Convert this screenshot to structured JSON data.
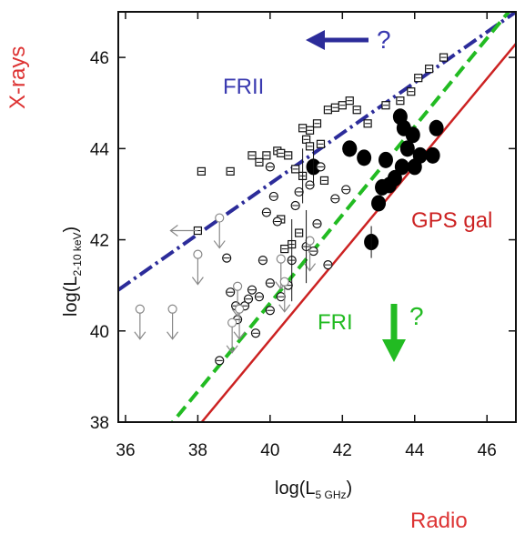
{
  "chart_data": {
    "type": "scatter",
    "xlabel": "log(L",
    "xlabel_sub": "5 GHz",
    "xlabel_tail": ")",
    "ylabel": "log(L",
    "ylabel_sub": "2-10 keV",
    "ylabel_tail": ")",
    "xlim": [
      35.8,
      46.8
    ],
    "ylim": [
      38,
      47
    ],
    "x_ticks": [
      36,
      38,
      40,
      42,
      44,
      46
    ],
    "y_ticks": [
      38,
      40,
      42,
      44,
      46
    ],
    "x_tick_labels": [
      "36",
      "38",
      "40",
      "42",
      "44",
      "46"
    ],
    "y_tick_labels": [
      "38",
      "40",
      "42",
      "44",
      "46"
    ],
    "grid": false,
    "annotations": {
      "x_rays": "X-rays",
      "radio": "Radio",
      "frii": "FRII",
      "fri": "FRI",
      "gps": "GPS gal",
      "q_top": "?",
      "q_right": "?"
    },
    "colors": {
      "frii": "#2c2c9a",
      "fri": "#22bb22",
      "gps": "#cc2222",
      "x_rays": "#dd3333",
      "radio": "#dd3333"
    },
    "series": [
      {
        "name": "FRII",
        "type": "line",
        "style": "dash-dot",
        "points": [
          [
            35.8,
            40.9
          ],
          [
            46.8,
            47.0
          ]
        ]
      },
      {
        "name": "FRI",
        "type": "line",
        "style": "dashed",
        "points": [
          [
            37.1,
            37.8
          ],
          [
            46.6,
            47.0
          ]
        ]
      },
      {
        "name": "GPS gal",
        "type": "line",
        "style": "solid",
        "points": [
          [
            37.9,
            37.8
          ],
          [
            46.8,
            46.3
          ]
        ]
      },
      {
        "name": "GPS galaxies",
        "type": "scatter",
        "marker": "filled-circle",
        "points": [
          [
            42.2,
            44.0
          ],
          [
            42.6,
            43.8
          ],
          [
            42.8,
            41.95
          ],
          [
            43.0,
            42.8
          ],
          [
            43.1,
            43.15
          ],
          [
            43.3,
            43.2
          ],
          [
            43.45,
            43.35
          ],
          [
            43.6,
            44.7
          ],
          [
            43.65,
            43.6
          ],
          [
            43.7,
            44.45
          ],
          [
            43.8,
            44.0
          ],
          [
            43.95,
            44.3
          ],
          [
            44.0,
            43.6
          ],
          [
            44.15,
            43.85
          ],
          [
            44.5,
            43.85
          ],
          [
            44.6,
            44.45
          ],
          [
            43.2,
            43.75
          ],
          [
            42.2,
            44.0
          ],
          [
            41.2,
            43.6
          ]
        ]
      },
      {
        "name": "FRII sources",
        "type": "scatter",
        "marker": "open-square",
        "points": [
          [
            38.1,
            43.5
          ],
          [
            38.9,
            43.5
          ],
          [
            39.5,
            43.85
          ],
          [
            39.7,
            43.7
          ],
          [
            39.9,
            43.85
          ],
          [
            40.2,
            43.95
          ],
          [
            40.3,
            43.9
          ],
          [
            40.5,
            43.85
          ],
          [
            40.7,
            43.55
          ],
          [
            40.9,
            43.4
          ],
          [
            41.0,
            44.2
          ],
          [
            41.1,
            44.4
          ],
          [
            41.3,
            44.55
          ],
          [
            41.4,
            44.1
          ],
          [
            41.6,
            44.85
          ],
          [
            41.8,
            44.9
          ],
          [
            42.0,
            44.95
          ],
          [
            42.2,
            45.05
          ],
          [
            42.4,
            44.85
          ],
          [
            42.7,
            44.55
          ],
          [
            43.2,
            44.95
          ],
          [
            43.6,
            45.05
          ],
          [
            43.9,
            45.25
          ],
          [
            44.1,
            45.55
          ],
          [
            44.4,
            45.75
          ],
          [
            44.8,
            46.0
          ],
          [
            40.9,
            44.45
          ],
          [
            41.1,
            44.05
          ],
          [
            41.5,
            43.3
          ],
          [
            40.8,
            42.15
          ],
          [
            40.6,
            41.9
          ],
          [
            40.4,
            41.8
          ],
          [
            40.3,
            42.45
          ],
          [
            38.0,
            42.2
          ]
        ]
      },
      {
        "name": "FRI sources",
        "type": "scatter",
        "marker": "open-circle-bar",
        "points": [
          [
            38.6,
            39.35
          ],
          [
            38.8,
            41.6
          ],
          [
            38.9,
            40.85
          ],
          [
            39.1,
            40.25
          ],
          [
            39.3,
            40.55
          ],
          [
            39.4,
            40.7
          ],
          [
            39.5,
            40.9
          ],
          [
            39.6,
            39.95
          ],
          [
            39.7,
            40.75
          ],
          [
            39.8,
            41.55
          ],
          [
            39.9,
            42.6
          ],
          [
            40.0,
            41.05
          ],
          [
            40.0,
            43.6
          ],
          [
            40.1,
            42.95
          ],
          [
            40.2,
            42.4
          ],
          [
            40.3,
            40.75
          ],
          [
            40.5,
            41.0
          ],
          [
            40.6,
            41.55
          ],
          [
            40.7,
            42.75
          ],
          [
            40.8,
            43.05
          ],
          [
            41.0,
            41.85
          ],
          [
            41.1,
            43.2
          ],
          [
            41.2,
            41.75
          ],
          [
            41.3,
            42.35
          ],
          [
            41.4,
            43.6
          ],
          [
            41.6,
            41.45
          ],
          [
            41.8,
            42.9
          ],
          [
            42.1,
            43.1
          ],
          [
            39.05,
            40.55
          ],
          [
            40.0,
            40.45
          ]
        ]
      },
      {
        "name": "Upper limits",
        "type": "scatter",
        "marker": "arrow-down",
        "points": [
          [
            36.4,
            40.0
          ],
          [
            37.3,
            40.0
          ],
          [
            38.0,
            41.2
          ],
          [
            38.6,
            42.0
          ],
          [
            39.1,
            40.5
          ],
          [
            40.3,
            41.1
          ],
          [
            41.1,
            41.5
          ],
          [
            40.4,
            40.6
          ],
          [
            39.15,
            40.0
          ],
          [
            38.95,
            39.7
          ]
        ]
      }
    ]
  }
}
